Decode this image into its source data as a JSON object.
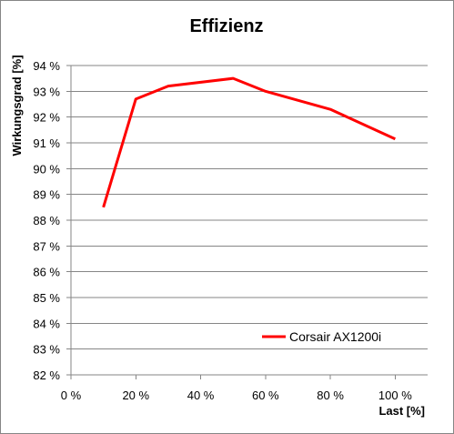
{
  "chart_data": {
    "type": "line",
    "title": "Effizienz",
    "xlabel": "Last [%]",
    "ylabel": "Wirkungsgrad [%]",
    "xlim": [
      0,
      110
    ],
    "ylim": [
      82,
      94
    ],
    "x_ticks": [
      "0 %",
      "20 %",
      "40 %",
      "60 %",
      "80 %",
      "100 %"
    ],
    "x_tick_values": [
      0,
      20,
      40,
      60,
      80,
      100
    ],
    "y_ticks": [
      "82 %",
      "83 %",
      "84 %",
      "85 %",
      "86 %",
      "87 %",
      "88 %",
      "89 %",
      "90 %",
      "91 %",
      "92 %",
      "93 %",
      "94 %"
    ],
    "y_tick_values": [
      82,
      83,
      84,
      85,
      86,
      87,
      88,
      89,
      90,
      91,
      92,
      93,
      94
    ],
    "grid": "horizontal",
    "legend_position": "bottom-right",
    "series": [
      {
        "name": "Corsair AX1200i",
        "color": "#ff0000",
        "x": [
          10,
          20,
          30,
          50,
          60,
          80,
          100
        ],
        "y": [
          88.5,
          92.7,
          93.2,
          93.5,
          93.0,
          92.3,
          91.15
        ]
      }
    ]
  }
}
